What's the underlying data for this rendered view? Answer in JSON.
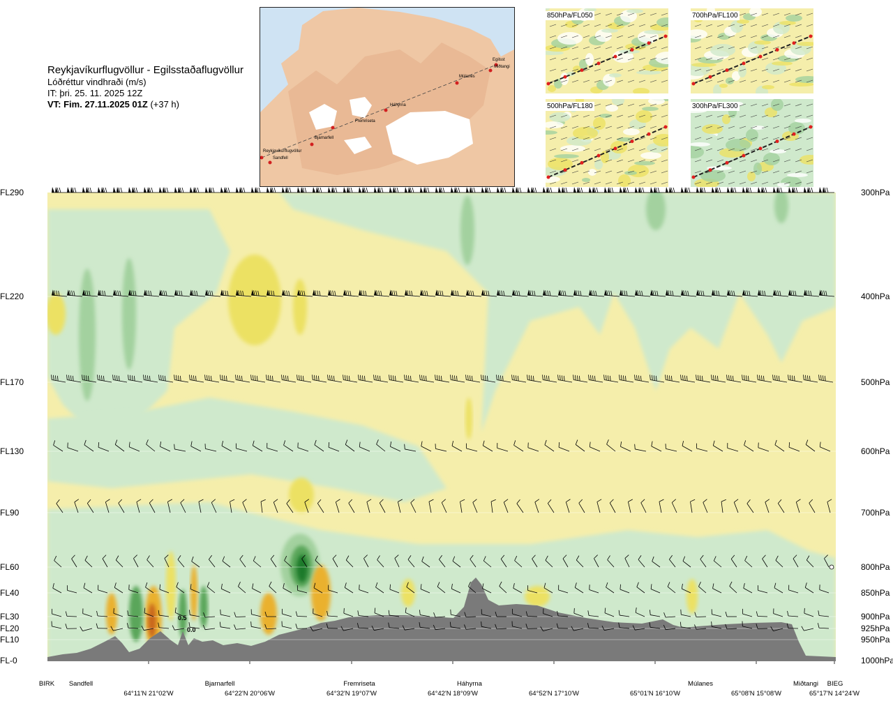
{
  "header": {
    "route": "Reykjavíkurflugvöllur - Egilsstaðaflugvöllur",
    "quantity": "Lóðréttur vindhraði (m/s)",
    "issue_time": "IT: þri. 25. 11. 2025 12Z",
    "valid_prefix": "VT: Fim. 27.11.2025 01Z",
    "valid_suffix": "(+37 h)"
  },
  "map": {
    "labels": [
      "Egilsst",
      "Miðtangi",
      "Múlanes",
      "Háhyrna",
      "Fremriseta",
      "Bjarnarfell",
      "Reykjavíkurflugvöllur",
      "Sandfell"
    ]
  },
  "thumbnails": [
    {
      "label": "850hPa/FL050"
    },
    {
      "label": "700hPa/FL100"
    },
    {
      "label": "500hPa/FL180"
    },
    {
      "label": "300hPa/FL300"
    }
  ],
  "chart_data": {
    "type": "heatmap",
    "title": "Reykjavíkurflugvöllur - Egilsstaðaflugvöllur",
    "quantity": "Lóðréttur vindhraði (m/s)",
    "levels_left": [
      "FL290",
      "FL220",
      "FL170",
      "FL130",
      "FL90",
      "FL60",
      "FL40",
      "FL30",
      "FL20",
      "FL10",
      "FL-0"
    ],
    "levels_right": [
      "300hPa",
      "400hPa",
      "500hPa",
      "600hPa",
      "700hPa",
      "800hPa",
      "850hPa",
      "900hPa",
      "925hPa",
      "950hPa",
      "1000hPa"
    ],
    "stations": [
      "BIRK",
      "Sandfell",
      "Bjarnarfell",
      "Fremriseta",
      "Háhyrna",
      "Múlanes",
      "Miðtangi",
      "BIEG"
    ],
    "coordinates": [
      "64°11'N 21°02'W",
      "64°22'N 20°06'W",
      "64°32'N 19°07'W",
      "64°42'N 18°09'W",
      "64°52'N 17°10'W",
      "65°01'N 16°10'W",
      "65°08'N 15°08'W",
      "65°17'N 14°24'W"
    ],
    "annotations": [
      "0.5",
      "0.0"
    ],
    "colors": {
      "up_light": "#f5eeab",
      "up_mid": "#ece163",
      "up_strong": "#e3d026",
      "orange": "#eab12d",
      "dark_orange": "#c9681c",
      "down_light": "#cfe9cc",
      "down_mid": "#a3d19f",
      "down_strong": "#5aa65a",
      "down_dark": "#1d7a2b",
      "terrain": "#7a7a7a"
    }
  }
}
